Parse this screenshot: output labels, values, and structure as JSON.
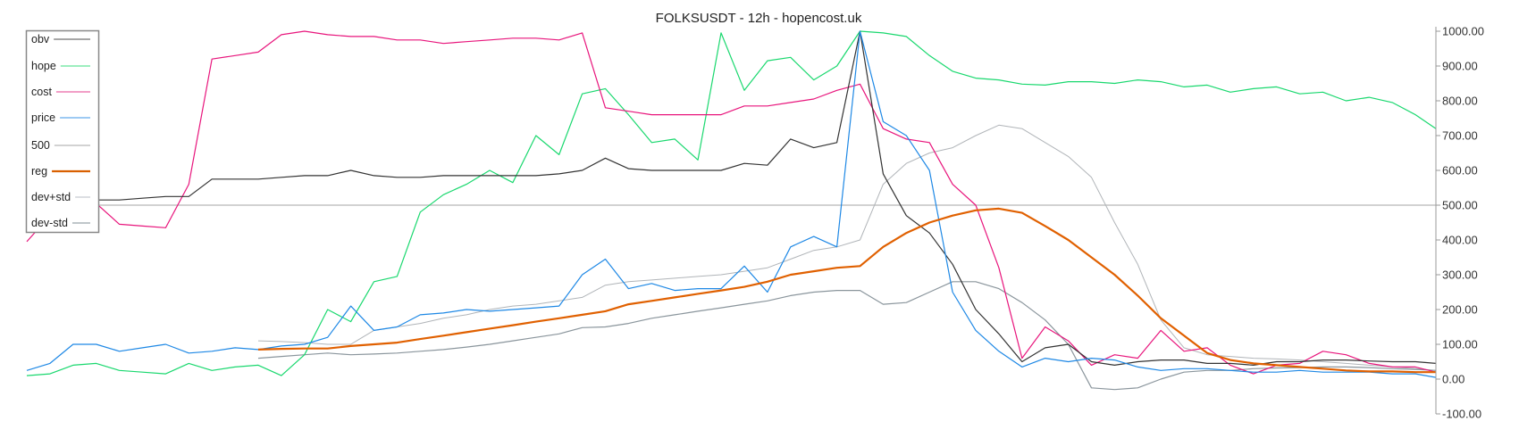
{
  "chart_data": {
    "type": "line",
    "title": "FOLKSUSDT - 12h - hopencost.uk",
    "ylim": [
      -100,
      1000
    ],
    "yticks": [
      "1000.00",
      "900.00",
      "800.00",
      "700.00",
      "600.00",
      "500.00",
      "400.00",
      "300.00",
      "200.00",
      "100.00",
      "0.00",
      "-100.00"
    ],
    "ytick_values": [
      1000,
      900,
      800,
      700,
      600,
      500,
      400,
      300,
      200,
      100,
      0,
      -100
    ],
    "y_axis_side": "right",
    "grid": false,
    "legend_placement": "top-left",
    "x": [
      0,
      1,
      2,
      3,
      4,
      5,
      6,
      7,
      8,
      9,
      10,
      11,
      12,
      13,
      14,
      15,
      16,
      17,
      18,
      19,
      20,
      21,
      22,
      23,
      24,
      25,
      26,
      27,
      28,
      29,
      30,
      31,
      32,
      33,
      34,
      35,
      36,
      37,
      38,
      39,
      40,
      41,
      42,
      43,
      44,
      45,
      46,
      47,
      48,
      49,
      50,
      51,
      52,
      53,
      54,
      55,
      56,
      57,
      58,
      59,
      60,
      61
    ],
    "series": [
      {
        "name": "obv",
        "color": "#333333",
        "legend_color": "#888888",
        "width": 1.2,
        "values": [
          530,
          525,
          520,
          515,
          515,
          520,
          525,
          525,
          575,
          575,
          575,
          580,
          585,
          585,
          600,
          585,
          580,
          580,
          585,
          585,
          585,
          585,
          585,
          590,
          600,
          635,
          605,
          600,
          600,
          600,
          600,
          620,
          615,
          690,
          665,
          680,
          1000,
          590,
          470,
          420,
          330,
          200,
          130,
          50,
          90,
          100,
          50,
          40,
          50,
          55,
          55,
          45,
          45,
          40,
          50,
          50,
          55,
          55,
          52,
          50,
          50,
          45
        ]
      },
      {
        "name": "hope",
        "color": "#19d86e",
        "legend_color": "#7de8aa",
        "width": 1.2,
        "values": [
          10,
          15,
          40,
          45,
          25,
          20,
          15,
          45,
          25,
          35,
          40,
          10,
          70,
          200,
          165,
          280,
          295,
          480,
          530,
          560,
          600,
          565,
          700,
          645,
          820,
          835,
          760,
          680,
          690,
          630,
          995,
          830,
          915,
          925,
          860,
          900,
          1000,
          995,
          985,
          930,
          885,
          865,
          860,
          848,
          845,
          855,
          855,
          850,
          860,
          855,
          840,
          845,
          825,
          835,
          840,
          820,
          825,
          800,
          810,
          795,
          760,
          720
        ]
      },
      {
        "name": "cost",
        "color": "#e8157c",
        "legend_color": "#ee7fb4",
        "width": 1.2,
        "values": [
          395,
          470,
          455,
          505,
          445,
          440,
          435,
          560,
          920,
          930,
          940,
          990,
          1000,
          990,
          985,
          985,
          975,
          975,
          965,
          970,
          975,
          980,
          980,
          975,
          995,
          780,
          770,
          760,
          760,
          760,
          760,
          785,
          785,
          795,
          805,
          830,
          848,
          720,
          690,
          680,
          560,
          500,
          320,
          60,
          150,
          110,
          40,
          70,
          60,
          140,
          80,
          90,
          40,
          15,
          40,
          45,
          80,
          70,
          45,
          35,
          35,
          20
        ]
      },
      {
        "name": "price",
        "color": "#1e88e5",
        "legend_color": "#7db9ef",
        "width": 1.2,
        "values": [
          25,
          45,
          100,
          100,
          80,
          90,
          100,
          75,
          80,
          90,
          85,
          95,
          100,
          120,
          210,
          140,
          150,
          185,
          190,
          200,
          195,
          200,
          205,
          210,
          300,
          345,
          260,
          275,
          255,
          260,
          260,
          325,
          250,
          380,
          410,
          380,
          1000,
          740,
          700,
          600,
          250,
          140,
          80,
          35,
          60,
          50,
          60,
          55,
          35,
          25,
          30,
          30,
          25,
          20,
          20,
          25,
          20,
          20,
          20,
          15,
          15,
          5
        ]
      },
      {
        "name": "500",
        "color": "#c4c4c4",
        "legend_color": "#c4c4c4",
        "width": 1.5,
        "values": [
          500,
          500,
          500,
          500,
          500,
          500,
          500,
          500,
          500,
          500,
          500,
          500,
          500,
          500,
          500,
          500,
          500,
          500,
          500,
          500,
          500,
          500,
          500,
          500,
          500,
          500,
          500,
          500,
          500,
          500,
          500,
          500,
          500,
          500,
          500,
          500,
          500,
          500,
          500,
          500,
          500,
          500,
          500,
          500,
          500,
          500,
          500,
          500,
          500,
          500,
          500,
          500,
          500,
          500,
          500,
          500,
          500,
          500,
          500,
          500,
          500,
          500
        ]
      },
      {
        "name": "reg",
        "color": "#e06000",
        "legend_color": "#d96000",
        "width": 2.2,
        "values": [
          null,
          null,
          null,
          null,
          null,
          null,
          null,
          null,
          null,
          null,
          85,
          87,
          88,
          88,
          95,
          100,
          105,
          115,
          125,
          135,
          145,
          155,
          165,
          175,
          185,
          195,
          215,
          225,
          235,
          245,
          255,
          265,
          280,
          300,
          310,
          320,
          325,
          380,
          420,
          450,
          470,
          485,
          490,
          478,
          440,
          400,
          350,
          300,
          240,
          175,
          125,
          75,
          55,
          45,
          40,
          35,
          30,
          25,
          22,
          22,
          20,
          20
        ]
      },
      {
        "name": "dev+std",
        "color": "#b0b4b8",
        "legend_color": "#d0d4d8",
        "width": 1,
        "values": [
          null,
          null,
          null,
          null,
          null,
          null,
          null,
          null,
          null,
          null,
          110,
          108,
          105,
          100,
          100,
          140,
          150,
          160,
          175,
          185,
          200,
          210,
          215,
          225,
          235,
          270,
          280,
          285,
          290,
          295,
          300,
          310,
          320,
          345,
          370,
          380,
          400,
          560,
          620,
          650,
          665,
          700,
          730,
          720,
          680,
          640,
          580,
          450,
          330,
          170,
          90,
          70,
          65,
          60,
          58,
          55,
          50,
          45,
          40,
          35,
          30,
          25
        ]
      },
      {
        "name": "dev-std",
        "color": "#8a959c",
        "legend_color": "#aab3b8",
        "width": 1.2,
        "values": [
          null,
          null,
          null,
          null,
          null,
          null,
          null,
          null,
          null,
          null,
          60,
          65,
          70,
          75,
          70,
          72,
          75,
          80,
          85,
          92,
          100,
          110,
          120,
          130,
          148,
          150,
          160,
          175,
          185,
          195,
          205,
          215,
          225,
          240,
          250,
          255,
          255,
          215,
          220,
          250,
          280,
          280,
          260,
          220,
          170,
          100,
          -25,
          -30,
          -25,
          0,
          20,
          25,
          25,
          30,
          32,
          33,
          35,
          35,
          33,
          30,
          28,
          25
        ]
      }
    ]
  }
}
